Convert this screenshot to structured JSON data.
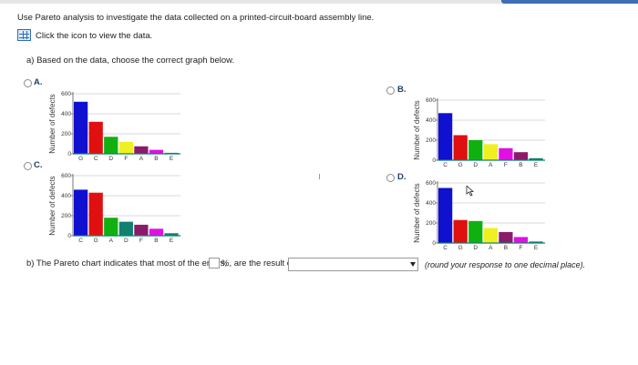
{
  "instructions": {
    "intro": "Use Pareto analysis to investigate the data collected on a printed-circuit-board assembly line.",
    "data_link": "Click the icon to view the data.",
    "part_a": "a) Based on the data, choose the correct graph below."
  },
  "options": [
    {
      "label": "A."
    },
    {
      "label": "B."
    },
    {
      "label": "C."
    },
    {
      "label": "D."
    }
  ],
  "part_b": {
    "before": "b) The Pareto chart indicates that most of the errors,",
    "percent_value": "",
    "after_percent": "%, are the result of",
    "select_value": "",
    "hint": "(round your response to one decimal place)."
  },
  "chart_data": [
    {
      "type": "bar",
      "option": "A.",
      "ylabel": "Number of defects",
      "ylim": [
        0,
        600
      ],
      "yticks": [
        "600",
        "400",
        "200",
        "0"
      ],
      "categories": [
        "G",
        "C",
        "D",
        "F",
        "A",
        "B",
        "E"
      ],
      "values": [
        520,
        320,
        170,
        120,
        75,
        40,
        10
      ],
      "colors": [
        "#1010d0",
        "#e01010",
        "#10b010",
        "#f0f020",
        "#8b1a6a",
        "#e010e0",
        "#108070"
      ],
      "grid": true
    },
    {
      "type": "bar",
      "option": "B.",
      "ylabel": "Number of defects",
      "ylim": [
        0,
        600
      ],
      "yticks": [
        "600",
        "400",
        "200",
        "0"
      ],
      "categories": [
        "C",
        "G",
        "D",
        "A",
        "F",
        "B",
        "E"
      ],
      "values": [
        470,
        250,
        200,
        160,
        120,
        80,
        20
      ],
      "colors": [
        "#1010d0",
        "#e01010",
        "#10b010",
        "#f0f020",
        "#e010e0",
        "#8b1a6a",
        "#108070"
      ],
      "grid": true
    },
    {
      "type": "bar",
      "option": "C.",
      "ylabel": "Number of defects",
      "ylim": [
        0,
        600
      ],
      "yticks": [
        "600",
        "400",
        "200",
        "0"
      ],
      "categories": [
        "C",
        "G",
        "A",
        "D",
        "F",
        "B",
        "E"
      ],
      "values": [
        460,
        430,
        180,
        140,
        110,
        70,
        25
      ],
      "colors": [
        "#1010d0",
        "#e01010",
        "#10b010",
        "#108070",
        "#8b1a6a",
        "#e010e0",
        "#108070"
      ],
      "grid": true
    },
    {
      "type": "bar",
      "option": "D.",
      "ylabel": "Number of defects",
      "ylim": [
        0,
        600
      ],
      "yticks": [
        "600",
        "400",
        "200",
        "0"
      ],
      "categories": [
        "C",
        "G",
        "D",
        "A",
        "B",
        "F",
        "E"
      ],
      "values": [
        550,
        230,
        220,
        150,
        110,
        60,
        15
      ],
      "colors": [
        "#1010d0",
        "#e01010",
        "#10b010",
        "#f0f020",
        "#8b1a6a",
        "#e010e0",
        "#108070"
      ],
      "grid": true
    }
  ]
}
